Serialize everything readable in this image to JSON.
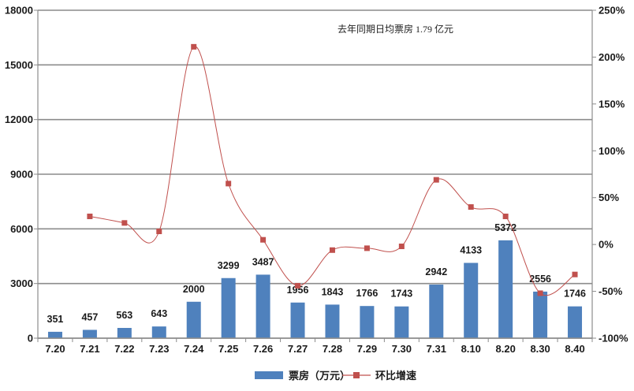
{
  "chart_data": {
    "type": "bar",
    "categories": [
      "7.20",
      "7.21",
      "7.22",
      "7.23",
      "7.24",
      "7.25",
      "7.26",
      "7.27",
      "7.28",
      "7.29",
      "7.30",
      "7.31",
      "8.10",
      "8.20",
      "8.30",
      "8.40"
    ],
    "series": [
      {
        "name": "票房（万元）",
        "type": "bar",
        "axis": "left",
        "color": "#4f81bd",
        "values": [
          351,
          457,
          563,
          643,
          2000,
          3299,
          3487,
          1956,
          1843,
          1766,
          1743,
          2942,
          4133,
          5372,
          2556,
          1746
        ]
      },
      {
        "name": "环比增速",
        "type": "line",
        "axis": "right",
        "color": "#c0504d",
        "values": [
          null,
          30,
          23,
          14,
          211,
          65,
          5,
          -44,
          -6,
          -4,
          -2,
          69,
          40,
          30,
          -52,
          -32
        ]
      }
    ],
    "yaxis_left": {
      "min": 0,
      "max": 18000,
      "ticks": [
        "0",
        "3000",
        "6000",
        "9000",
        "12000",
        "15000",
        "18000"
      ]
    },
    "yaxis_right": {
      "min": -100,
      "max": 250,
      "ticks": [
        "-100%",
        "-50%",
        "0%",
        "50%",
        "100%",
        "150%",
        "200%",
        "250%"
      ]
    },
    "annotation": "去年同期日均票房 1.79 亿元",
    "grid": true,
    "legend_position": "bottom"
  }
}
